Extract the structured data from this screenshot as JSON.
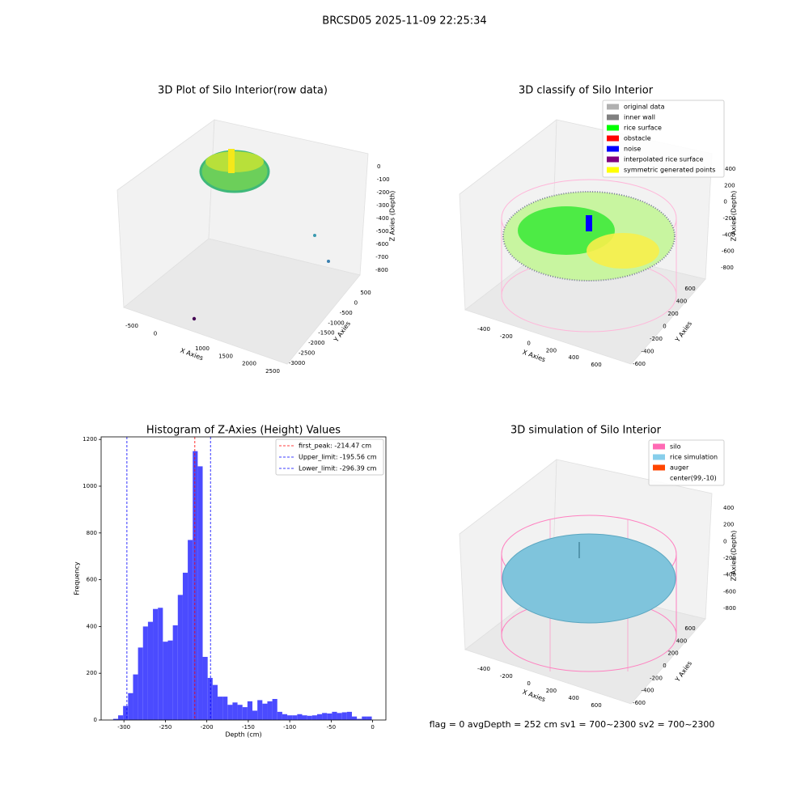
{
  "title": "BRCSD05 2025-11-09 22:25:34",
  "footer": "flag = 0     avgDepth = 252 cm  sv1 = 700~2300  sv2 = 700~2300",
  "chart_data": [
    {
      "type": "scatter3d",
      "title": "3D Plot of Silo Interior(row data)",
      "xlabel": "X Axies",
      "ylabel": "Y Axies",
      "zlabel": "Z Axies (Depth)",
      "xticks": [
        -500,
        0,
        1000,
        1500,
        2000,
        2500
      ],
      "yticks": [
        500,
        0,
        -500,
        -1000,
        -1500,
        -2000,
        -2500,
        -3000
      ],
      "zticks": [
        0,
        -100,
        -200,
        -300,
        -400,
        -500,
        -600,
        -700,
        -800
      ]
    },
    {
      "type": "scatter3d",
      "title": "3D classify of Silo Interior",
      "xlabel": "X Axies",
      "ylabel": "Y Axies",
      "zlabel": "Z Axies (Depth)",
      "xticks": [
        -400,
        -200,
        0,
        200,
        400,
        600
      ],
      "yticks": [
        -600,
        -400,
        -200,
        0,
        200,
        400,
        600
      ],
      "zticks": [
        400,
        200,
        0,
        -200,
        -400,
        -600,
        -800
      ],
      "legend": [
        {
          "name": "original data",
          "color": "#b0b0b0"
        },
        {
          "name": "inner wall",
          "color": "#808080"
        },
        {
          "name": "rice surface",
          "color": "#00ff00"
        },
        {
          "name": "obstacle",
          "color": "#ff0000"
        },
        {
          "name": "noise",
          "color": "#0000ff"
        },
        {
          "name": "interpolated rice surface",
          "color": "#800080"
        },
        {
          "name": "symmetric generated points",
          "color": "#ffff00"
        }
      ]
    },
    {
      "type": "histogram",
      "title": "Histogram of Z-Axies (Height) Values",
      "xlabel": "Depth (cm)",
      "ylabel": "Frequency",
      "color": "#4b4bff",
      "bins": [
        -313,
        -307,
        -301,
        -295,
        -289,
        -283,
        -277,
        -271,
        -265,
        -259,
        -253,
        -247,
        -241,
        -235,
        -229,
        -223,
        -217,
        -211,
        -205,
        -199,
        -193,
        -187,
        -181,
        -175,
        -169,
        -163,
        -157,
        -151,
        -145,
        -139,
        -133,
        -127,
        -121,
        -115,
        -109,
        -103,
        -97,
        -91,
        -85,
        -79,
        -73,
        -67,
        -61,
        -55,
        -49,
        -43,
        -37,
        -31,
        -25,
        -19,
        -13,
        -7,
        -1
      ],
      "values": [
        5,
        20,
        60,
        115,
        195,
        310,
        400,
        420,
        475,
        480,
        335,
        340,
        405,
        535,
        630,
        770,
        1150,
        1085,
        270,
        180,
        150,
        100,
        100,
        65,
        75,
        65,
        55,
        80,
        40,
        85,
        70,
        80,
        90,
        35,
        25,
        20,
        20,
        25,
        20,
        18,
        20,
        25,
        30,
        28,
        35,
        30,
        33,
        35,
        15,
        5,
        15,
        15
      ],
      "xlim": [
        -327.5,
        16
      ],
      "ylim": [
        0,
        1211
      ],
      "xticks": [
        -300,
        -250,
        -200,
        -150,
        -100,
        -50,
        0
      ],
      "yticks": [
        0,
        200,
        400,
        600,
        800,
        1000,
        1200
      ],
      "vlines": [
        {
          "value": -214.47,
          "label": "first_peak: -214.47 cm",
          "color": "#ff0000"
        },
        {
          "value": -195.56,
          "label": "Upper_limit: -195.56 cm",
          "color": "#0000ff"
        },
        {
          "value": -296.39,
          "label": "Lower_limit: -296.39 cm",
          "color": "#0000ff"
        }
      ]
    },
    {
      "type": "scatter3d",
      "title": "3D simulation of Silo Interior",
      "xlabel": "X Axies",
      "ylabel": "Y Axies",
      "zlabel": "Z Axies (Depth)",
      "xticks": [
        -400,
        -200,
        0,
        200,
        400,
        600
      ],
      "yticks": [
        -600,
        -400,
        -200,
        0,
        200,
        400,
        600
      ],
      "zticks": [
        400,
        200,
        0,
        -200,
        -400,
        -600,
        -800
      ],
      "legend": [
        {
          "name": "silo",
          "color": "#ff69b4"
        },
        {
          "name": "rice simulation",
          "color": "#87ceeb"
        },
        {
          "name": "auger",
          "color": "#ff4500"
        },
        {
          "name": "center(99,-10)",
          "color": "#ffffff"
        }
      ]
    }
  ]
}
